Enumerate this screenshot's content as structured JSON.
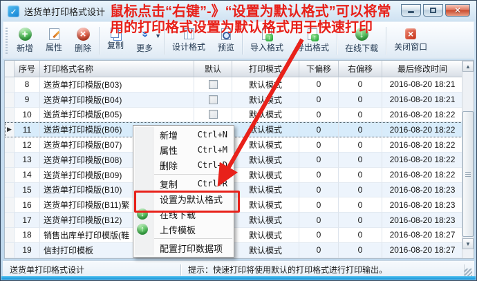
{
  "window": {
    "title": "送货单打印格式设计"
  },
  "annotation": {
    "line1": "鼠标点击“右键”-》“设置为默认格式”可以将常",
    "line2": "用的打印格式设置为默认格式用于快速打印",
    "color": "#e8211a"
  },
  "toolbar": {
    "buttons": [
      {
        "name": "add",
        "label": "新增",
        "icon": "plus-sphere"
      },
      {
        "name": "properties",
        "label": "属性",
        "icon": "edit-page"
      },
      {
        "name": "delete",
        "label": "删除",
        "icon": "x-sphere",
        "sep_after": true
      },
      {
        "name": "copy",
        "label": "复制",
        "icon": "copy-pages"
      },
      {
        "name": "more",
        "label": "更多",
        "icon": "double-chevron-down",
        "caret": true,
        "sep_after": true
      },
      {
        "name": "design-format",
        "label": "设计格式",
        "icon": "design"
      },
      {
        "name": "preview",
        "label": "预览",
        "icon": "preview",
        "sep_after": true
      },
      {
        "name": "import-format",
        "label": "导入格式",
        "icon": "page-import"
      },
      {
        "name": "export-format",
        "label": "导出格式",
        "icon": "page-export",
        "sep_after": true
      },
      {
        "name": "online-download",
        "label": "在线下载",
        "icon": "down-sphere",
        "sep_after": true
      },
      {
        "name": "close-window",
        "label": "关闭窗口",
        "icon": "x-box"
      }
    ]
  },
  "table": {
    "columns": {
      "seq": "序号",
      "name": "打印格式名称",
      "default": "默认",
      "mode": "打印模式",
      "offset_down": "下偏移",
      "offset_right": "右偏移",
      "modified": "最后修改时间"
    },
    "selected_seq": "11",
    "rows": [
      {
        "seq": "8",
        "name": "送货单打印模版(B03)",
        "default": false,
        "mode": "默认模式",
        "down": "0",
        "right": "0",
        "modified": "2016-08-20 18:21"
      },
      {
        "seq": "9",
        "name": "送货单打印模版(B04)",
        "default": false,
        "mode": "默认模式",
        "down": "0",
        "right": "0",
        "modified": "2016-08-20 18:21"
      },
      {
        "seq": "10",
        "name": "送货单打印模版(B05)",
        "default": false,
        "mode": "默认模式",
        "down": "0",
        "right": "0",
        "modified": "2016-08-20 18:22"
      },
      {
        "seq": "11",
        "name": "送货单打印模版(B06)",
        "default": false,
        "mode": "默认模式",
        "down": "0",
        "right": "0",
        "modified": "2016-08-20 18:22"
      },
      {
        "seq": "12",
        "name": "送货单打印模版(B07)",
        "default": false,
        "mode": "默认模式",
        "down": "0",
        "right": "0",
        "modified": "2016-08-20 18:22"
      },
      {
        "seq": "13",
        "name": "送货单打印模版(B08)",
        "default": false,
        "mode": "默认模式",
        "down": "0",
        "right": "0",
        "modified": "2016-08-20 18:22"
      },
      {
        "seq": "14",
        "name": "送货单打印模版(B09)",
        "default": false,
        "mode": "默认模式",
        "down": "0",
        "right": "0",
        "modified": "2016-08-20 18:22"
      },
      {
        "seq": "15",
        "name": "送货单打印模版(B10)",
        "default": false,
        "mode": "默认模式",
        "down": "0",
        "right": "0",
        "modified": "2016-08-20 18:23"
      },
      {
        "seq": "16",
        "name": "送货单打印模版(B11)繁",
        "default": false,
        "mode": "默认模式",
        "down": "0",
        "right": "0",
        "modified": "2016-08-20 18:23"
      },
      {
        "seq": "17",
        "name": "送货单打印模版(B12)",
        "default": false,
        "mode": "默认模式",
        "down": "0",
        "right": "0",
        "modified": "2016-08-20 18:23"
      },
      {
        "seq": "18",
        "name": "销售出库单打印模版(鞋",
        "default": false,
        "mode": "默认模式",
        "down": "0",
        "right": "0",
        "modified": "2016-08-20 18:27"
      },
      {
        "seq": "19",
        "name": "信封打印模板",
        "default": false,
        "mode": "默认模式",
        "down": "0",
        "right": "0",
        "modified": "2016-08-20 18:27"
      }
    ]
  },
  "context_menu": {
    "items": [
      {
        "name": "new",
        "label": "新增",
        "shortcut": "Ctrl+N"
      },
      {
        "name": "properties",
        "label": "属性",
        "shortcut": "Ctrl+M"
      },
      {
        "name": "delete",
        "label": "删除",
        "shortcut": "Ctrl+D"
      },
      {
        "separator": true
      },
      {
        "name": "copy",
        "label": "复制",
        "shortcut": "Ctrl+R"
      },
      {
        "name": "set-default-format",
        "label": "设置为默认格式",
        "highlighted": true
      },
      {
        "name": "online-download",
        "label": "在线下载",
        "icon": "down-sphere"
      },
      {
        "name": "upload-template",
        "label": "上传模板",
        "icon": "up-sphere"
      },
      {
        "separator": true
      },
      {
        "name": "configure-print-data",
        "label": "配置打印数据项"
      }
    ]
  },
  "status_bar": {
    "left": "送货单打印格式设计",
    "tip": "提示：快速打印将使用默认的打印格式进行打印输出。"
  }
}
